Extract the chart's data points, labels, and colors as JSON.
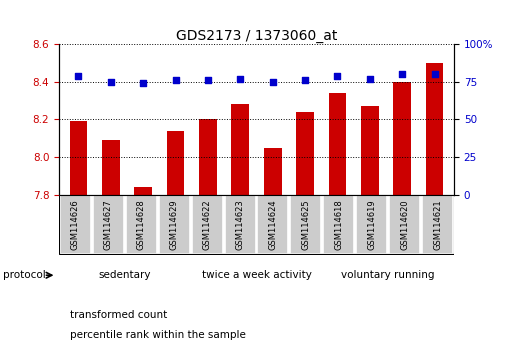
{
  "title": "GDS2173 / 1373060_at",
  "categories": [
    "GSM114626",
    "GSM114627",
    "GSM114628",
    "GSM114629",
    "GSM114622",
    "GSM114623",
    "GSM114624",
    "GSM114625",
    "GSM114618",
    "GSM114619",
    "GSM114620",
    "GSM114621"
  ],
  "bar_values": [
    8.19,
    8.09,
    7.84,
    8.14,
    8.2,
    8.28,
    8.05,
    8.24,
    8.34,
    8.27,
    8.4,
    8.5
  ],
  "percentile_values": [
    79,
    75,
    74,
    76,
    76,
    77,
    75,
    76,
    79,
    77,
    80,
    80
  ],
  "bar_color": "#cc0000",
  "dot_color": "#0000cc",
  "ylim_left": [
    7.8,
    8.6
  ],
  "ylim_right": [
    0,
    100
  ],
  "yticks_left": [
    7.8,
    8.0,
    8.2,
    8.4,
    8.6
  ],
  "yticks_right": [
    0,
    25,
    50,
    75,
    100
  ],
  "groups": [
    {
      "label": "sedentary",
      "start": 0,
      "end": 4,
      "color": "#ccffcc"
    },
    {
      "label": "twice a week activity",
      "start": 4,
      "end": 8,
      "color": "#99ff99"
    },
    {
      "label": "voluntary running",
      "start": 8,
      "end": 12,
      "color": "#33dd33"
    }
  ],
  "protocol_label": "protocol",
  "legend_bar_label": "transformed count",
  "legend_dot_label": "percentile rank within the sample",
  "sample_box_color": "#cccccc",
  "sample_box_edge": "#888888"
}
